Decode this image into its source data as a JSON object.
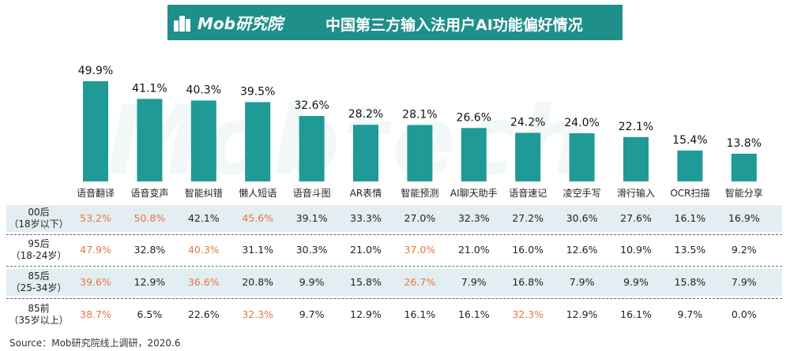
{
  "header": {
    "logo_text": "Mob研究院",
    "title": "中国第三方输入法用户AI功能偏好情况"
  },
  "chart_data": {
    "type": "bar",
    "categories": [
      "语音翻译",
      "语音变声",
      "智能纠错",
      "懒人短语",
      "语音斗图",
      "AR表情",
      "智能预测",
      "AI聊天助手",
      "语音速记",
      "凌空手写",
      "滑行输入",
      "OCR扫描",
      "智能分享"
    ],
    "values": [
      49.9,
      41.1,
      40.3,
      39.5,
      32.6,
      28.2,
      28.1,
      26.6,
      24.2,
      24.0,
      22.1,
      15.4,
      13.8
    ],
    "value_labels": [
      "49.9%",
      "41.1%",
      "40.3%",
      "39.5%",
      "32.6%",
      "28.2%",
      "28.1%",
      "26.6%",
      "24.2%",
      "24.0%",
      "22.1%",
      "15.4%",
      "13.8%"
    ],
    "ylim": [
      0,
      50
    ],
    "bar_color": "#1f9a96"
  },
  "table": {
    "rows": [
      {
        "label": "00后",
        "sublabel": "（18岁以下）",
        "cells": [
          "53.2%",
          "50.8%",
          "42.1%",
          "45.6%",
          "39.1%",
          "33.3%",
          "27.0%",
          "32.3%",
          "27.2%",
          "30.6%",
          "27.6%",
          "16.1%",
          "16.9%"
        ],
        "highlight": [
          0,
          1,
          3
        ]
      },
      {
        "label": "95后",
        "sublabel": "（18-24岁）",
        "cells": [
          "47.9%",
          "32.8%",
          "40.3%",
          "31.1%",
          "30.3%",
          "21.0%",
          "37.0%",
          "21.0%",
          "16.0%",
          "12.6%",
          "10.9%",
          "13.5%",
          "9.2%"
        ],
        "highlight": [
          0,
          2,
          6
        ]
      },
      {
        "label": "85后",
        "sublabel": "（25-34岁）",
        "cells": [
          "39.6%",
          "12.9%",
          "36.6%",
          "20.8%",
          "9.9%",
          "15.8%",
          "26.7%",
          "7.9%",
          "16.8%",
          "7.9%",
          "9.9%",
          "15.8%",
          "7.9%"
        ],
        "highlight": [
          0,
          2,
          6
        ]
      },
      {
        "label": "85前",
        "sublabel": "（35岁以上）",
        "cells": [
          "38.7%",
          "6.5%",
          "22.6%",
          "32.3%",
          "9.7%",
          "12.9%",
          "16.1%",
          "16.1%",
          "32.3%",
          "12.9%",
          "16.1%",
          "9.7%",
          "0.0%"
        ],
        "highlight": [
          0,
          3,
          8
        ]
      }
    ],
    "highlight_color": "#e8763f"
  },
  "source": "Source：Mob研究院线上调研，2020.6",
  "watermark": "Mobtech"
}
